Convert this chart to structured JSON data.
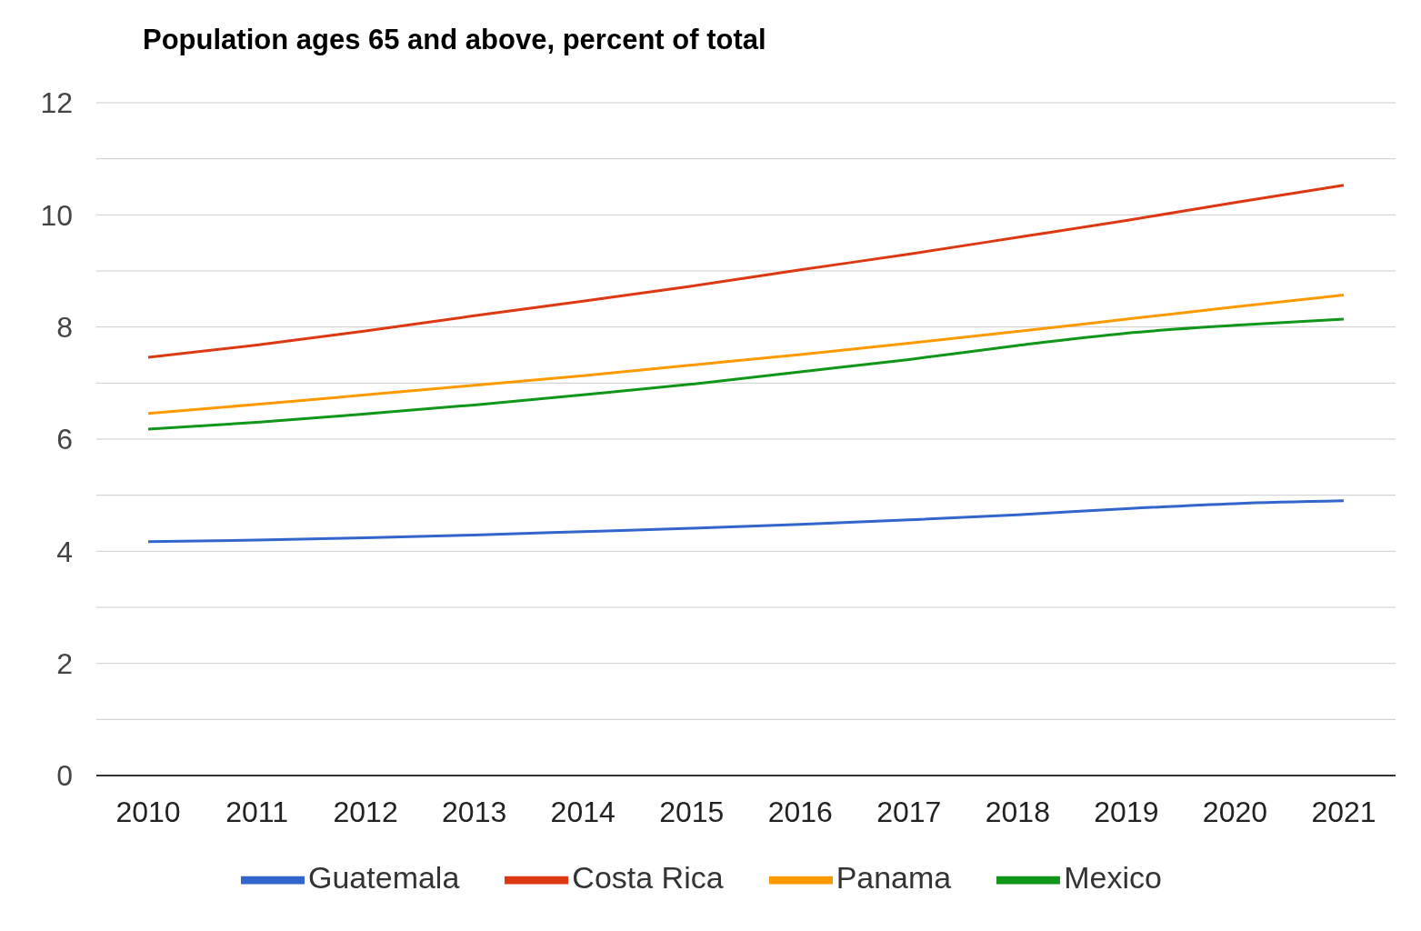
{
  "chart_data": {
    "type": "line",
    "title": "Population ages 65 and above, percent of total",
    "categories": [
      "2010",
      "2011",
      "2012",
      "2013",
      "2014",
      "2015",
      "2016",
      "2017",
      "2018",
      "2019",
      "2020",
      "2021"
    ],
    "series": [
      {
        "name": "Guatemala",
        "color": "#3366cc",
        "values": [
          4.17,
          4.2,
          4.24,
          4.29,
          4.35,
          4.41,
          4.48,
          4.56,
          4.65,
          4.76,
          4.85,
          4.9
        ]
      },
      {
        "name": "Costa Rica",
        "color": "#dc3912",
        "values": [
          7.46,
          7.68,
          7.93,
          8.2,
          8.46,
          8.73,
          9.02,
          9.3,
          9.6,
          9.9,
          10.22,
          10.53
        ]
      },
      {
        "name": "Panama",
        "color": "#ff9900",
        "values": [
          6.46,
          6.62,
          6.79,
          6.96,
          7.13,
          7.32,
          7.51,
          7.71,
          7.92,
          8.14,
          8.36,
          8.57
        ]
      },
      {
        "name": "Mexico",
        "color": "#109618",
        "values": [
          6.18,
          6.3,
          6.45,
          6.61,
          6.79,
          6.98,
          7.2,
          7.42,
          7.67,
          7.89,
          8.03,
          8.14
        ]
      }
    ],
    "ylim": [
      0,
      12
    ],
    "yticks": [
      0,
      {
        "value": 1,
        "label": null
      },
      2,
      {
        "value": 3,
        "label": null
      },
      4,
      {
        "value": 5,
        "label": null
      },
      6,
      {
        "value": 7,
        "label": null
      },
      8,
      {
        "value": 9,
        "label": null
      },
      10,
      {
        "value": 11,
        "label": null
      },
      12
    ],
    "grid": "y",
    "legend": "bottom",
    "marker": "none",
    "line_style": "solid"
  }
}
